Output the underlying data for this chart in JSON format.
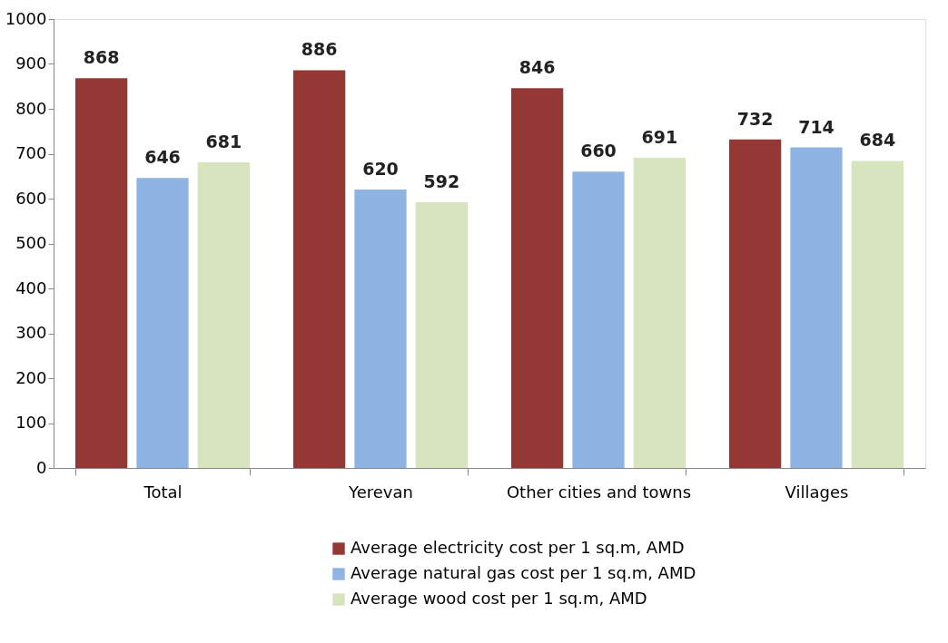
{
  "chart_data": {
    "type": "bar",
    "categories": [
      "Total",
      "Yerevan",
      "Other cities and towns",
      "Villages"
    ],
    "series": [
      {
        "name": "Average electricity cost per 1 sq.m, AMD",
        "color": "#953735",
        "values": [
          868,
          886,
          846,
          732
        ]
      },
      {
        "name": "Average natural gas cost per 1 sq.m, AMD",
        "color": "#8eb4e3",
        "values": [
          646,
          620,
          660,
          714
        ]
      },
      {
        "name": "Average wood cost per 1 sq.m, AMD",
        "color": "#d7e4bd",
        "values": [
          681,
          592,
          691,
          684
        ]
      }
    ],
    "ylim": [
      0,
      1000
    ],
    "yticks": [
      0,
      100,
      200,
      300,
      400,
      500,
      600,
      700,
      800,
      900,
      1000
    ],
    "data_labels": true,
    "grid": false,
    "legend": "bottom"
  }
}
